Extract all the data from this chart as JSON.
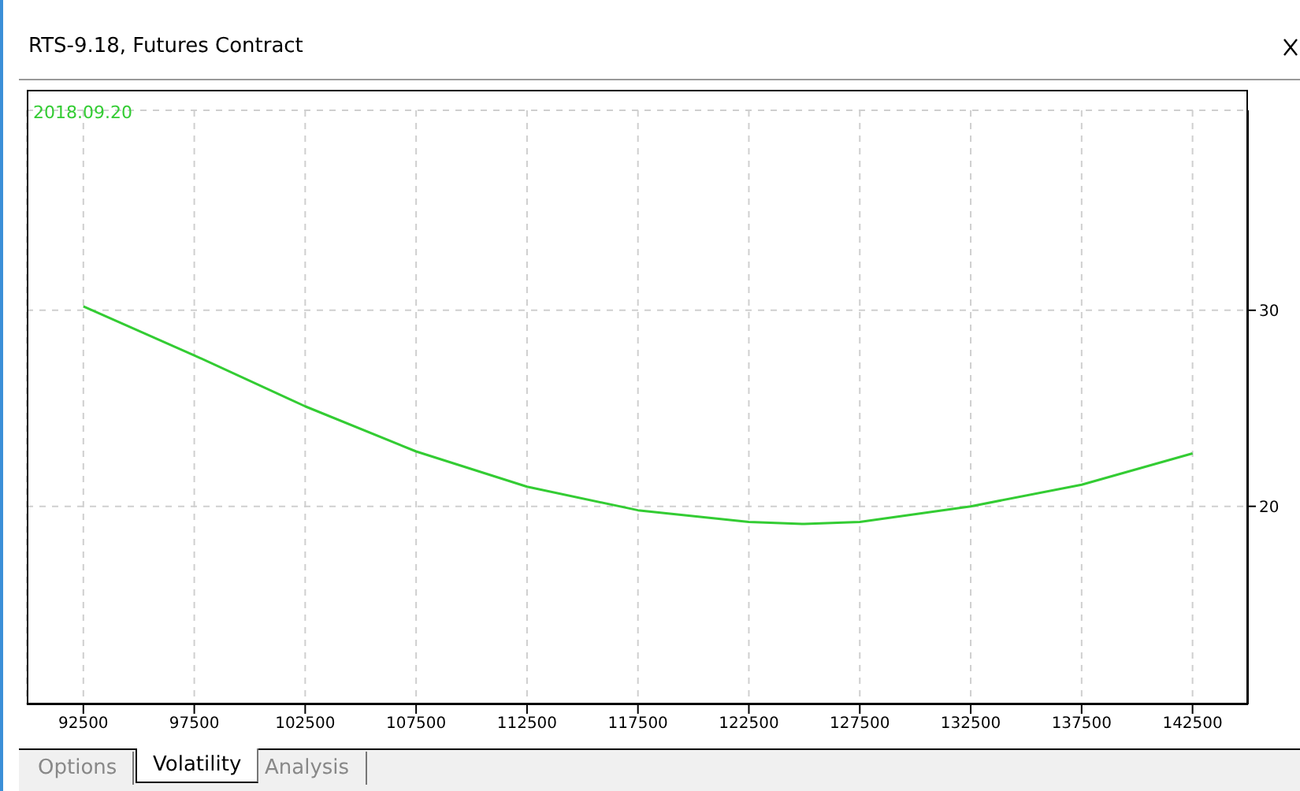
{
  "chart_data": {
    "type": "line",
    "title": "RTS-9.18, Futures Contract",
    "x": [
      92500,
      97500,
      102500,
      107500,
      112500,
      117500,
      122500,
      125000,
      127500,
      132500,
      137500,
      142500
    ],
    "series": [
      {
        "name": "2018.09.20",
        "color": "#33cc33",
        "values": [
          30.2,
          27.7,
          25.1,
          22.8,
          21.0,
          19.8,
          19.2,
          19.1,
          19.2,
          20.0,
          21.1,
          22.7
        ]
      }
    ],
    "xlim": [
      89950,
      145000
    ],
    "xticks": [
      92500,
      97500,
      102500,
      107500,
      112500,
      117500,
      122500,
      127500,
      132500,
      137500,
      142500
    ],
    "ylim": [
      9.9,
      40.2
    ],
    "yticks": [
      20,
      30
    ],
    "grid": true,
    "legend": "top left",
    "line_style": "solid",
    "marker": "none",
    "annotations": [
      "Options",
      "Volatility",
      "Analysis"
    ]
  }
}
